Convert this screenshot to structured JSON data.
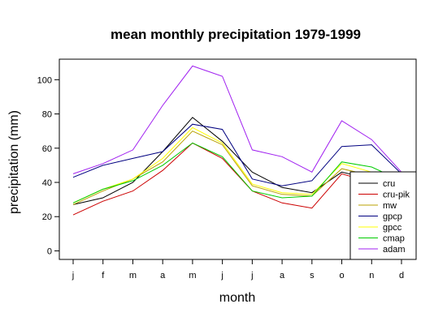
{
  "chart_data": {
    "type": "line",
    "title": "mean monthly precipitation 1979-1999",
    "xlabel": "month",
    "ylabel": "precipitation (mm)",
    "categories": [
      "j",
      "f",
      "m",
      "a",
      "m",
      "j",
      "j",
      "a",
      "s",
      "o",
      "n",
      "d"
    ],
    "ylim": [
      -5,
      112
    ],
    "yticks": [
      0,
      20,
      40,
      60,
      80,
      100
    ],
    "grid": false,
    "legend_position": "bottom-right",
    "series": [
      {
        "name": "cru",
        "color": "#000000",
        "values": [
          27,
          31,
          40,
          58,
          78,
          64,
          46,
          37,
          34,
          46,
          42,
          37
        ]
      },
      {
        "name": "cru-pik",
        "color": "#cc0000",
        "values": [
          21,
          29,
          35,
          47,
          63,
          54,
          35,
          28,
          25,
          45,
          40,
          35
        ]
      },
      {
        "name": "mw",
        "color": "#b8a000",
        "values": [
          27,
          35,
          42,
          52,
          70,
          62,
          38,
          33,
          32,
          48,
          44,
          38
        ]
      },
      {
        "name": "gpcp",
        "color": "#000080",
        "values": [
          43,
          50,
          54,
          58,
          74,
          71,
          42,
          38,
          41,
          61,
          62,
          45
        ]
      },
      {
        "name": "gpcc",
        "color": "#ffff00",
        "values": [
          28,
          36,
          42,
          54,
          72,
          63,
          39,
          34,
          33,
          51,
          46,
          40
        ]
      },
      {
        "name": "cmap",
        "color": "#00cc00",
        "values": [
          28,
          36,
          41,
          50,
          63,
          55,
          35,
          31,
          32,
          52,
          49,
          41
        ]
      },
      {
        "name": "adam",
        "color": "#a020f0",
        "values": [
          45,
          51,
          59,
          85,
          108,
          102,
          59,
          55,
          46,
          76,
          65,
          46
        ]
      }
    ]
  }
}
